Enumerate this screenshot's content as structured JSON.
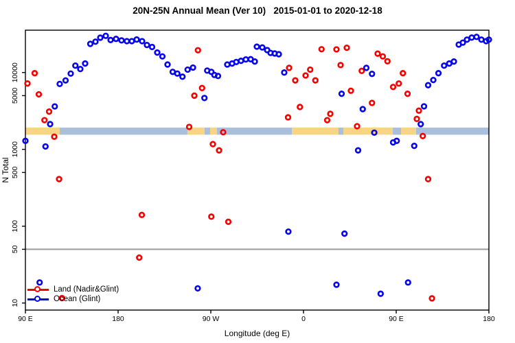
{
  "title": "20N-25N Annual Mean (Ver 10)   2015-01-01 to 2020-12-18",
  "chart_data": {
    "type": "scatter",
    "title": "20N-25N Annual Mean (Ver 10)   2015-01-01 to 2020-12-18",
    "xlabel": "Longitude (deg E)",
    "ylabel": "N Total",
    "x_axis": {
      "range": [
        90,
        540
      ],
      "ticks": [
        {
          "lon": 90,
          "label": "90 E"
        },
        {
          "lon": 180,
          "label": "180"
        },
        {
          "lon": 270,
          "label": "90 W"
        },
        {
          "lon": 360,
          "label": "0"
        },
        {
          "lon": 450,
          "label": "90 E"
        },
        {
          "lon": 540,
          "label": "180"
        }
      ]
    },
    "y_axis": {
      "scale": "log",
      "range": [
        10,
        32000
      ],
      "ticks": [
        {
          "value": 10000,
          "label": "10000"
        },
        {
          "value": 5000,
          "label": "5000"
        },
        {
          "value": 1000,
          "label": "1000"
        },
        {
          "value": 500,
          "label": "500"
        },
        {
          "value": 100,
          "label": "100"
        },
        {
          "value": 50,
          "label": "50"
        },
        {
          "value": 10,
          "label": "10"
        }
      ]
    },
    "grid": "off",
    "reference_line": {
      "value": 50,
      "color": "#9a9a9a"
    },
    "surface_band": {
      "value_top": 1920,
      "value_bottom": 1550,
      "colors": {
        "land": "#F7D583",
        "ocean": "#A9BFDB"
      },
      "segments": [
        {
          "from": 90,
          "to": 123.3,
          "type": "land"
        },
        {
          "from": 123.3,
          "to": 247.3,
          "type": "ocean"
        },
        {
          "from": 247.3,
          "to": 264,
          "type": "land"
        },
        {
          "from": 264,
          "to": 269.3,
          "type": "ocean"
        },
        {
          "from": 269.3,
          "to": 276,
          "type": "land"
        },
        {
          "from": 276,
          "to": 348.7,
          "type": "ocean"
        },
        {
          "from": 348.7,
          "to": 394,
          "type": "land"
        },
        {
          "from": 394,
          "to": 398.7,
          "type": "ocean"
        },
        {
          "from": 398.7,
          "to": 446.7,
          "type": "land"
        },
        {
          "from": 446.7,
          "to": 454.7,
          "type": "ocean"
        },
        {
          "from": 454.7,
          "to": 469.3,
          "type": "land"
        },
        {
          "from": 469.3,
          "to": 540,
          "type": "ocean"
        }
      ]
    },
    "legend": {
      "position": "bottom-left"
    },
    "series": [
      {
        "name": "Land (Nadir&Glint)",
        "color": "#F70000",
        "points": [
          [
            99,
            9800
          ],
          [
            92,
            7200
          ],
          [
            103,
            5200
          ],
          [
            113,
            3100
          ],
          [
            108.5,
            2400
          ],
          [
            118,
            1460
          ],
          [
            122.7,
            410
          ],
          [
            203,
            140
          ],
          [
            200.5,
            39
          ],
          [
            125.5,
            11.6
          ],
          [
            249,
            1960
          ],
          [
            257.5,
            19500
          ],
          [
            254,
            5000
          ],
          [
            261.5,
            6280
          ],
          [
            272,
            1170
          ],
          [
            278,
            970
          ],
          [
            282,
            1670
          ],
          [
            270.5,
            133
          ],
          [
            287,
            114
          ],
          [
            346,
            11500
          ],
          [
            352,
            7900
          ],
          [
            362,
            9150
          ],
          [
            366.5,
            10900
          ],
          [
            371.5,
            7900
          ],
          [
            356.5,
            3560
          ],
          [
            345,
            2610
          ],
          [
            386,
            2900
          ],
          [
            383,
            2400
          ],
          [
            412,
            2000
          ],
          [
            377.5,
            20100
          ],
          [
            392,
            20000
          ],
          [
            402,
            21000
          ],
          [
            396,
            12500
          ],
          [
            406,
            5790
          ],
          [
            416.5,
            10500
          ],
          [
            432,
            17600
          ],
          [
            437,
            16200
          ],
          [
            441.5,
            14000
          ],
          [
            447,
            6490
          ],
          [
            452.5,
            7190
          ],
          [
            456.5,
            9800
          ],
          [
            461,
            5290
          ],
          [
            426.5,
            4020
          ],
          [
            470,
            2490
          ],
          [
            472,
            3190
          ],
          [
            475.8,
            1490
          ],
          [
            481,
            410
          ],
          [
            484.7,
            11.5
          ]
        ]
      },
      {
        "name": "Ocean (Glint)",
        "color": "#0606EC",
        "points": [
          [
            123.3,
            7100
          ],
          [
            129,
            7890
          ],
          [
            134,
            9690
          ],
          [
            138.5,
            12300
          ],
          [
            143.3,
            11100
          ],
          [
            148,
            13100
          ],
          [
            153,
            23600
          ],
          [
            158,
            25200
          ],
          [
            162.7,
            28400
          ],
          [
            168,
            30000
          ],
          [
            172.7,
            26500
          ],
          [
            178,
            27400
          ],
          [
            183.3,
            26200
          ],
          [
            188.5,
            25600
          ],
          [
            193.3,
            25600
          ],
          [
            198,
            26900
          ],
          [
            203.3,
            25600
          ],
          [
            208,
            22800
          ],
          [
            213,
            21500
          ],
          [
            218,
            18200
          ],
          [
            223,
            16200
          ],
          [
            228,
            12700
          ],
          [
            233,
            10200
          ],
          [
            237.5,
            9690
          ],
          [
            242.5,
            8820
          ],
          [
            247.5,
            10900
          ],
          [
            252.7,
            11600
          ],
          [
            263.8,
            4660
          ],
          [
            266.5,
            10600
          ],
          [
            270.5,
            10200
          ],
          [
            273.5,
            9290
          ],
          [
            277,
            9010
          ],
          [
            286,
            12700
          ],
          [
            290.7,
            13100
          ],
          [
            294.7,
            13700
          ],
          [
            299.3,
            14200
          ],
          [
            304,
            14800
          ],
          [
            308.7,
            14900
          ],
          [
            312.7,
            13900
          ],
          [
            314.7,
            21700
          ],
          [
            320,
            21200
          ],
          [
            324.7,
            19600
          ],
          [
            328,
            18000
          ],
          [
            332,
            17700
          ],
          [
            336,
            17300
          ],
          [
            341.3,
            10000
          ],
          [
            397,
            5290
          ],
          [
            421,
            11500
          ],
          [
            426.5,
            9600
          ],
          [
            417.5,
            3340
          ],
          [
            428.7,
            1650
          ],
          [
            447,
            1230
          ],
          [
            450.5,
            1290
          ],
          [
            467.5,
            1110
          ],
          [
            413,
            970
          ],
          [
            473.8,
            2130
          ],
          [
            477,
            3630
          ],
          [
            481,
            6840
          ],
          [
            486,
            7990
          ],
          [
            491,
            9800
          ],
          [
            496.5,
            12300
          ],
          [
            501.5,
            13100
          ],
          [
            506,
            13900
          ],
          [
            510.7,
            23100
          ],
          [
            514.7,
            24500
          ],
          [
            518.7,
            26800
          ],
          [
            523.3,
            28500
          ],
          [
            528,
            29100
          ],
          [
            532.7,
            26800
          ],
          [
            537.3,
            25600
          ],
          [
            540,
            26800
          ],
          [
            345.3,
            85
          ],
          [
            399.8,
            80
          ],
          [
            392,
            17.3
          ],
          [
            434.9,
            13.2
          ],
          [
            461.5,
            18.5
          ],
          [
            257.3,
            15.5
          ],
          [
            103.8,
            18.5
          ],
          [
            109.5,
            1090
          ],
          [
            90,
            1290
          ],
          [
            114,
            2130
          ],
          [
            118.5,
            3620
          ]
        ]
      }
    ]
  }
}
